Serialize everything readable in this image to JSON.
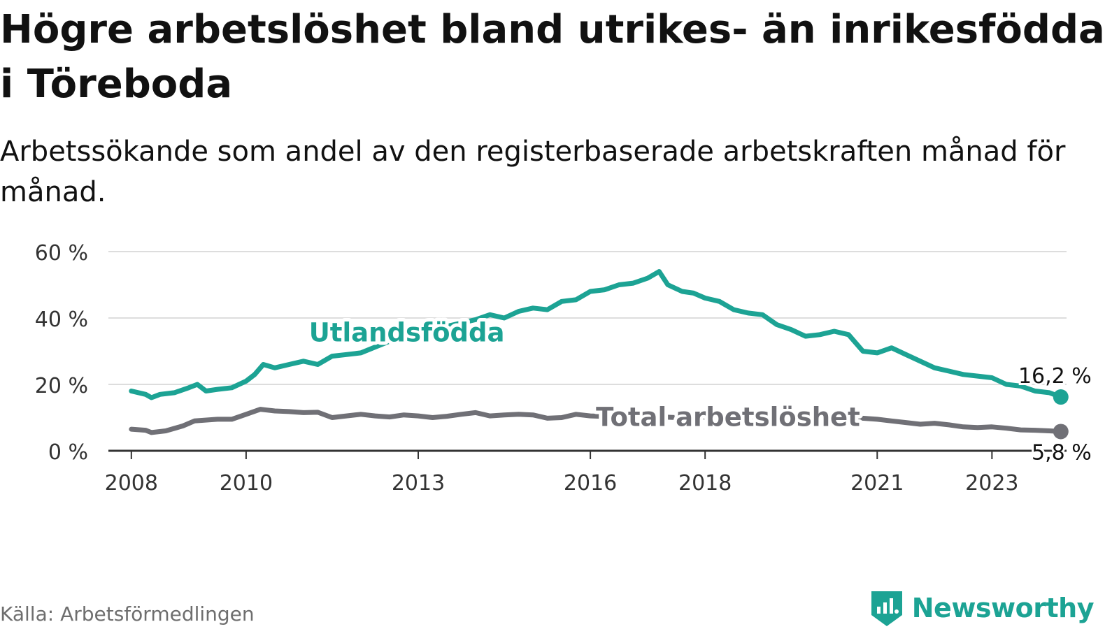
{
  "title": "Högre arbetslöshet bland utrikes- än inrikesfödda i Töreboda",
  "subtitle": "Arbetssökande som andel av den registerbaserade arbetskraften månad för månad.",
  "source": "Källa: Arbetsförmedlingen",
  "brand": {
    "name": "Newsworthy",
    "icon": "newsworthy-logo-icon",
    "color": "#1ca394"
  },
  "chart_data": {
    "type": "line",
    "x_unit": "year",
    "ylim": [
      0,
      60
    ],
    "xlim": [
      2007.6,
      2024.3
    ],
    "grid": true,
    "y_ticks": [
      {
        "value": 0,
        "label": "0 %"
      },
      {
        "value": 20,
        "label": "20 %"
      },
      {
        "value": 40,
        "label": "40 %"
      },
      {
        "value": 60,
        "label": "60 %"
      }
    ],
    "x_ticks": [
      {
        "value": 2008,
        "label": "2008"
      },
      {
        "value": 2010,
        "label": "2010"
      },
      {
        "value": 2013,
        "label": "2013"
      },
      {
        "value": 2016,
        "label": "2016"
      },
      {
        "value": 2018,
        "label": "2018"
      },
      {
        "value": 2021,
        "label": "2021"
      },
      {
        "value": 2023,
        "label": "2023"
      }
    ],
    "series": [
      {
        "name": "Utlandsfödda",
        "color": "#1ca394",
        "end_label": "16,2 %",
        "points": [
          [
            2008.0,
            18
          ],
          [
            2008.25,
            17
          ],
          [
            2008.35,
            16
          ],
          [
            2008.5,
            17
          ],
          [
            2008.75,
            17.5
          ],
          [
            2009.0,
            19
          ],
          [
            2009.15,
            20
          ],
          [
            2009.3,
            18
          ],
          [
            2009.5,
            18.5
          ],
          [
            2009.75,
            19
          ],
          [
            2010.0,
            21
          ],
          [
            2010.15,
            23
          ],
          [
            2010.3,
            26
          ],
          [
            2010.5,
            25
          ],
          [
            2010.75,
            26
          ],
          [
            2011.0,
            27
          ],
          [
            2011.25,
            26
          ],
          [
            2011.5,
            28.5
          ],
          [
            2011.75,
            29
          ],
          [
            2012.0,
            29.5
          ],
          [
            2012.5,
            33
          ],
          [
            2013.0,
            35.5
          ],
          [
            2013.5,
            37.5
          ],
          [
            2014.0,
            39.5
          ],
          [
            2014.25,
            41
          ],
          [
            2014.5,
            40
          ],
          [
            2014.75,
            42
          ],
          [
            2015.0,
            43
          ],
          [
            2015.25,
            42.5
          ],
          [
            2015.5,
            45
          ],
          [
            2015.75,
            45.5
          ],
          [
            2016.0,
            48
          ],
          [
            2016.25,
            48.5
          ],
          [
            2016.5,
            50
          ],
          [
            2016.75,
            50.5
          ],
          [
            2017.0,
            52
          ],
          [
            2017.2,
            54
          ],
          [
            2017.35,
            50
          ],
          [
            2017.6,
            48
          ],
          [
            2017.8,
            47.5
          ],
          [
            2018.0,
            46
          ],
          [
            2018.25,
            45
          ],
          [
            2018.5,
            42.5
          ],
          [
            2018.75,
            41.5
          ],
          [
            2019.0,
            41
          ],
          [
            2019.25,
            38
          ],
          [
            2019.5,
            36.5
          ],
          [
            2019.75,
            34.5
          ],
          [
            2020.0,
            35
          ],
          [
            2020.25,
            36
          ],
          [
            2020.5,
            35
          ],
          [
            2020.75,
            30
          ],
          [
            2021.0,
            29.5
          ],
          [
            2021.25,
            31
          ],
          [
            2021.5,
            29
          ],
          [
            2021.75,
            27
          ],
          [
            2022.0,
            25
          ],
          [
            2022.25,
            24
          ],
          [
            2022.5,
            23
          ],
          [
            2022.75,
            22.5
          ],
          [
            2023.0,
            22
          ],
          [
            2023.25,
            20
          ],
          [
            2023.5,
            19.5
          ],
          [
            2023.75,
            18
          ],
          [
            2024.0,
            17.5
          ],
          [
            2024.2,
            16.2
          ]
        ]
      },
      {
        "name": "Total arbetslöshet",
        "color": "#707076",
        "end_label": "5,8 %",
        "points": [
          [
            2008.0,
            6.5
          ],
          [
            2008.25,
            6.2
          ],
          [
            2008.35,
            5.5
          ],
          [
            2008.6,
            6
          ],
          [
            2008.9,
            7.5
          ],
          [
            2009.1,
            9
          ],
          [
            2009.5,
            9.5
          ],
          [
            2009.75,
            9.5
          ],
          [
            2010.0,
            11
          ],
          [
            2010.25,
            12.5
          ],
          [
            2010.5,
            12
          ],
          [
            2010.75,
            11.8
          ],
          [
            2011.0,
            11.5
          ],
          [
            2011.25,
            11.6
          ],
          [
            2011.5,
            10
          ],
          [
            2011.75,
            10.5
          ],
          [
            2012.0,
            11
          ],
          [
            2012.25,
            10.5
          ],
          [
            2012.5,
            10.2
          ],
          [
            2012.75,
            10.8
          ],
          [
            2013.0,
            10.5
          ],
          [
            2013.25,
            10
          ],
          [
            2013.5,
            10.4
          ],
          [
            2013.75,
            11
          ],
          [
            2014.0,
            11.5
          ],
          [
            2014.25,
            10.5
          ],
          [
            2014.5,
            10.8
          ],
          [
            2014.75,
            11
          ],
          [
            2015.0,
            10.8
          ],
          [
            2015.25,
            9.8
          ],
          [
            2015.5,
            10
          ],
          [
            2015.75,
            11
          ],
          [
            2016.0,
            10.5
          ],
          [
            2016.5,
            10.2
          ],
          [
            2017.0,
            10.4
          ],
          [
            2017.5,
            10
          ],
          [
            2018.0,
            10.2
          ],
          [
            2018.5,
            10
          ],
          [
            2019.0,
            10.3
          ],
          [
            2019.5,
            9.8
          ],
          [
            2020.0,
            10
          ],
          [
            2020.5,
            10.1
          ],
          [
            2021.0,
            9.5
          ],
          [
            2021.25,
            9
          ],
          [
            2021.5,
            8.5
          ],
          [
            2021.75,
            8
          ],
          [
            2022.0,
            8.3
          ],
          [
            2022.25,
            7.8
          ],
          [
            2022.5,
            7.2
          ],
          [
            2022.75,
            7
          ],
          [
            2023.0,
            7.2
          ],
          [
            2023.25,
            6.8
          ],
          [
            2023.5,
            6.3
          ],
          [
            2023.75,
            6.2
          ],
          [
            2024.0,
            6
          ],
          [
            2024.2,
            5.8
          ]
        ]
      }
    ],
    "annotations": [
      {
        "text": "Utlandsfödda",
        "series": "Utlandsfödda",
        "at_x": 2012.8
      },
      {
        "text": "Total arbetslöshet",
        "series": "Total arbetslöshet",
        "at_x": 2018.4
      }
    ]
  }
}
